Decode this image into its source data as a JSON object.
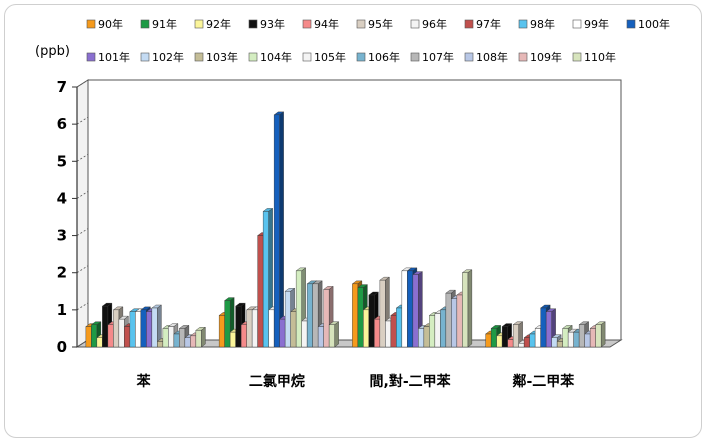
{
  "chart_data": {
    "type": "bar",
    "ylabel": "(ppb)",
    "ylim": [
      0,
      7
    ],
    "yticks": [
      "0",
      "1",
      "2",
      "3",
      "4",
      "5",
      "6",
      "7"
    ],
    "categories": [
      "苯",
      "二氯甲烷",
      "間,對-二甲苯",
      "鄰-二甲苯"
    ],
    "legend_position": "top",
    "series": [
      {
        "name": "90年",
        "color": "#f59a1c",
        "values": [
          0.55,
          0.85,
          1.7,
          0.35
        ]
      },
      {
        "name": "91年",
        "color": "#1e9a45",
        "values": [
          0.6,
          1.25,
          1.6,
          0.5
        ]
      },
      {
        "name": "92年",
        "color": "#fbf59a",
        "values": [
          0.25,
          0.4,
          1.0,
          0.3
        ]
      },
      {
        "name": "93年",
        "color": "#111111",
        "values": [
          1.1,
          1.1,
          1.4,
          0.55
        ]
      },
      {
        "name": "94年",
        "color": "#f58a8a",
        "values": [
          0.6,
          0.6,
          0.75,
          0.2
        ]
      },
      {
        "name": "95年",
        "color": "#d9cfc2",
        "values": [
          1.0,
          1.0,
          1.8,
          0.6
        ]
      },
      {
        "name": "96年",
        "color": "#f4f4f4",
        "values": [
          0.75,
          1.0,
          0.7,
          0.1
        ]
      },
      {
        "name": "97年",
        "color": "#c0504d",
        "values": [
          0.55,
          3.0,
          0.85,
          0.25
        ]
      },
      {
        "name": "98年",
        "color": "#59c3ee",
        "values": [
          0.95,
          3.65,
          1.05,
          0.35
        ]
      },
      {
        "name": "99年",
        "color": "#ffffff",
        "values": [
          0.95,
          1.0,
          2.05,
          0.5
        ]
      },
      {
        "name": "100年",
        "color": "#1560bd",
        "values": [
          1.0,
          6.25,
          2.05,
          1.05
        ]
      },
      {
        "name": "101年",
        "color": "#8a6fd0",
        "values": [
          0.95,
          0.75,
          1.95,
          0.95
        ]
      },
      {
        "name": "102年",
        "color": "#c4dbf3",
        "values": [
          1.05,
          1.5,
          0.5,
          0.25
        ]
      },
      {
        "name": "103年",
        "color": "#c4bd97",
        "values": [
          0.15,
          0.95,
          0.55,
          0.15
        ]
      },
      {
        "name": "104年",
        "color": "#d4edc1",
        "values": [
          0.5,
          2.05,
          0.85,
          0.5
        ]
      },
      {
        "name": "105年",
        "color": "#f4f4f4",
        "values": [
          0.55,
          0.7,
          0.9,
          0.4
        ]
      },
      {
        "name": "106年",
        "color": "#77b3cf",
        "values": [
          0.35,
          1.7,
          1.0,
          0.4
        ]
      },
      {
        "name": "107年",
        "color": "#b7b7b7",
        "values": [
          0.5,
          1.7,
          1.45,
          0.6
        ]
      },
      {
        "name": "108年",
        "color": "#b8c7e6",
        "values": [
          0.25,
          0.55,
          1.3,
          0.35
        ]
      },
      {
        "name": "109年",
        "color": "#e6b8b7",
        "values": [
          0.3,
          1.55,
          1.4,
          0.5
        ]
      },
      {
        "name": "110年",
        "color": "#d7e4bd",
        "values": [
          0.45,
          0.6,
          2.0,
          0.6
        ]
      }
    ]
  }
}
